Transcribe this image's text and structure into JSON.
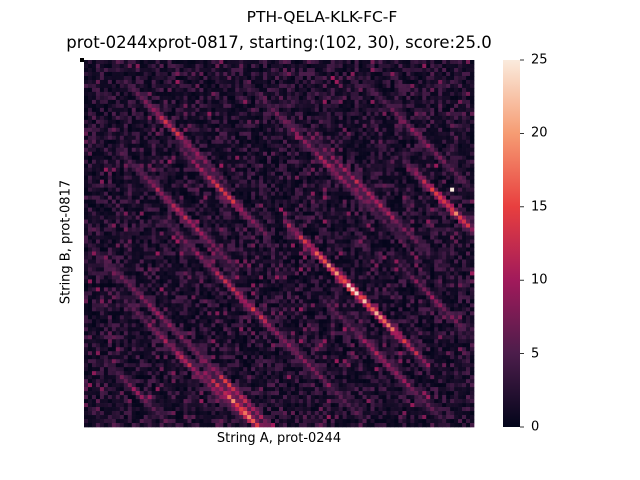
{
  "chart_data": {
    "type": "heatmap",
    "suptitle": "PTH-QELA-KLK-FC-F",
    "title": "prot-0244xprot-0817, starting:(102, 30), score:25.0",
    "xlabel": "String A, prot-0244",
    "ylabel": "String B, prot-0817",
    "grid": false,
    "colorbar": {
      "vmin": 0,
      "vmax": 25,
      "ticks": [
        0,
        5,
        10,
        15,
        20,
        25
      ],
      "tick_labels": [
        "0",
        "5",
        "10",
        "15",
        "20",
        "25"
      ],
      "colormap": "rocket",
      "colors": [
        "#03051a",
        "#4c1d4b",
        "#a11a5b",
        "#e83f3f",
        "#f69c73",
        "#faebdd"
      ]
    },
    "matrix_summary": {
      "columns": 98,
      "rows": 92,
      "pattern": "diagonal alignment bands running from upper-left to lower-right; strongest band near the centre",
      "max_value": 25.0,
      "max_location_label": "starting:(102, 30)"
    }
  }
}
